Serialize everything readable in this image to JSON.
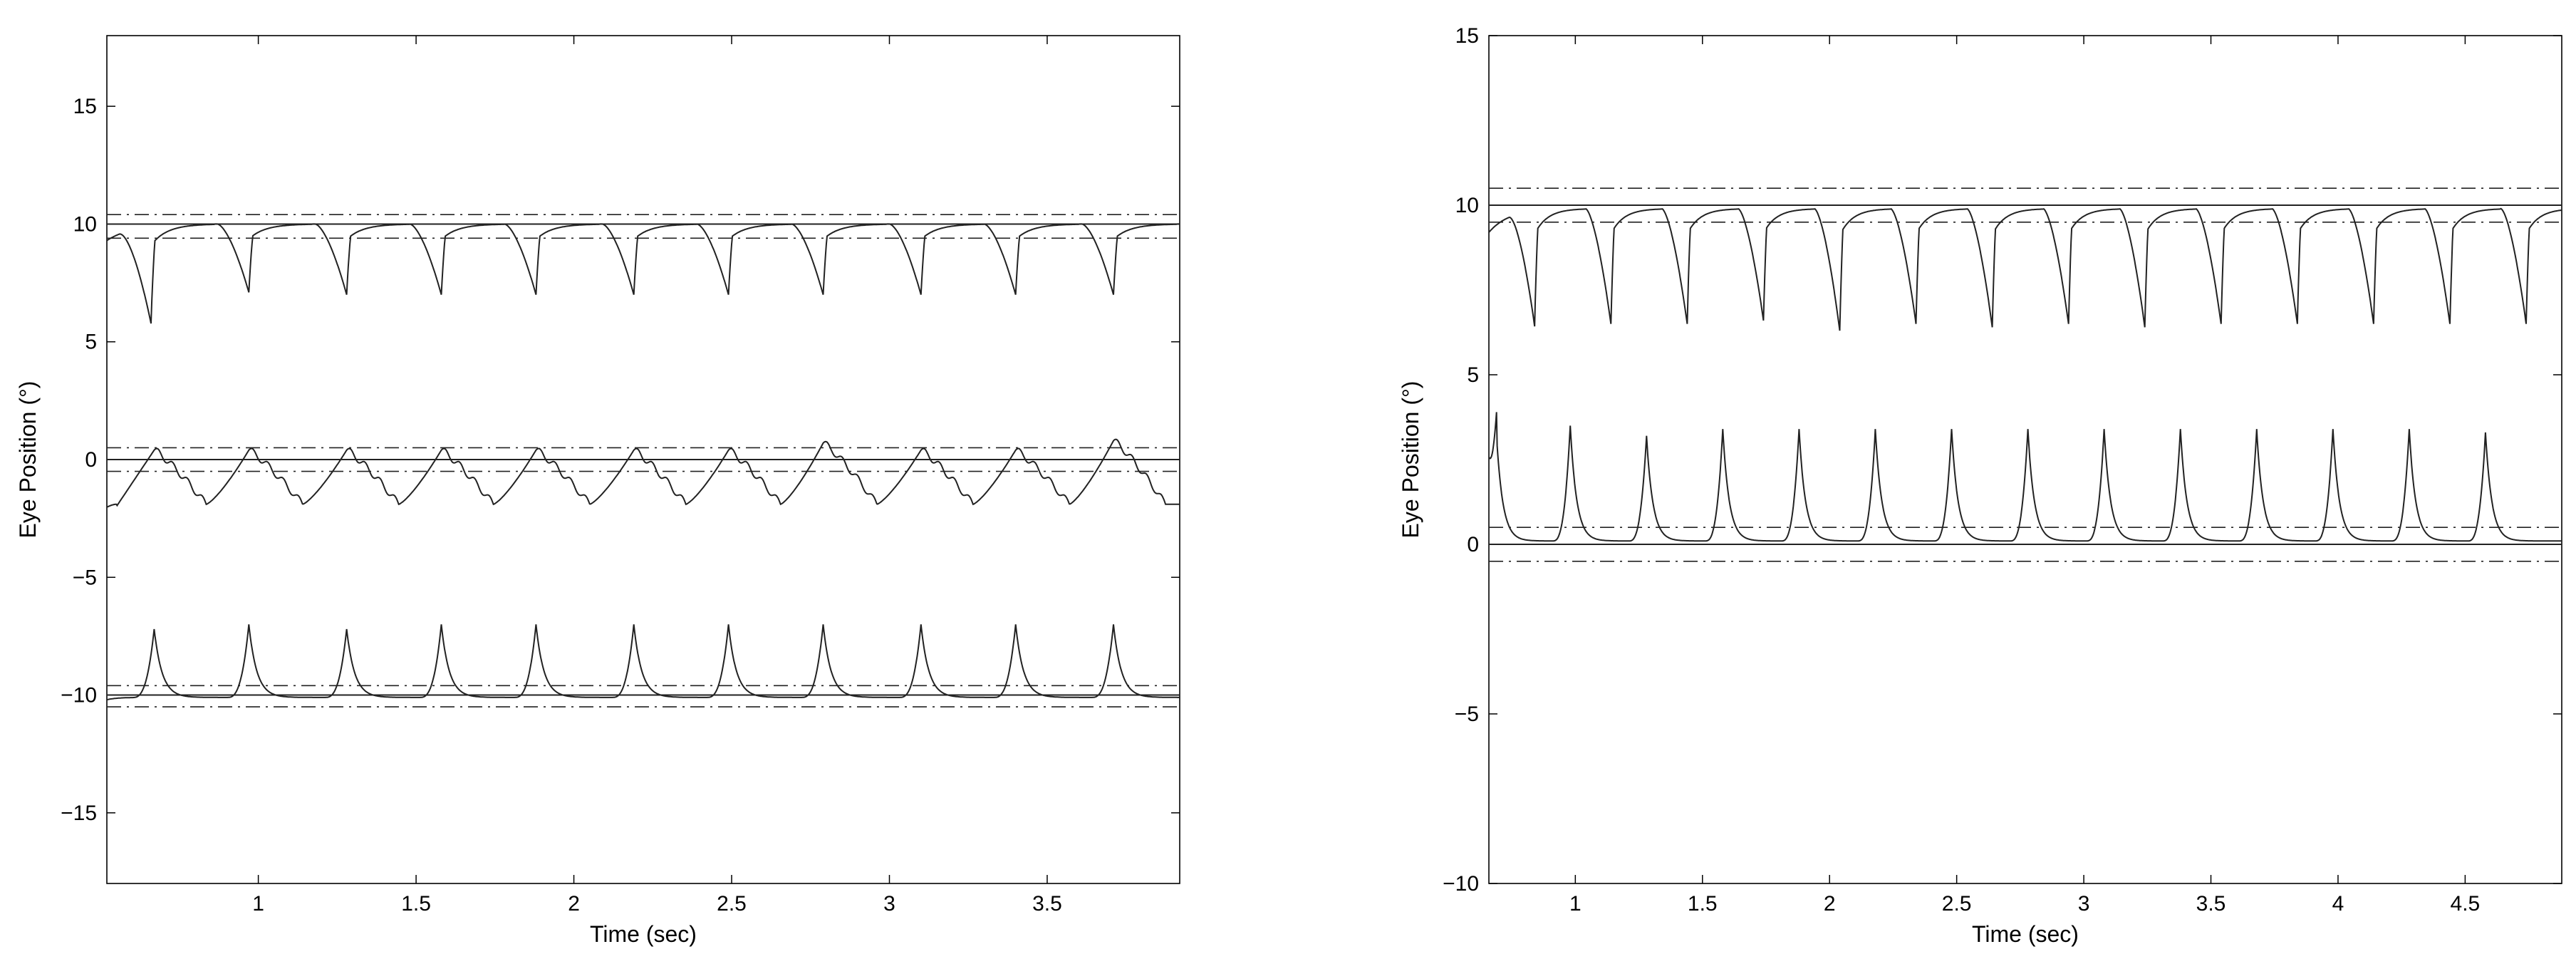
{
  "chart_data": [
    {
      "type": "line",
      "xlabel": "Time (sec)",
      "ylabel": "Eye Position (°)",
      "xlim": [
        0.52,
        3.92
      ],
      "ylim": [
        -18,
        18
      ],
      "xticks": [
        1,
        1.5,
        2,
        2.5,
        3,
        3.5
      ],
      "xtick_labels": [
        "1",
        "1.5",
        "2",
        "2.5",
        "3",
        "3.5"
      ],
      "yticks": [
        -15,
        -10,
        -5,
        0,
        5,
        10,
        15
      ],
      "ytick_labels": [
        "−15",
        "−10",
        "−5",
        "0",
        "5",
        "10",
        "15"
      ],
      "grid": false,
      "reference_lines": [
        {
          "style": "solid",
          "y": 10
        },
        {
          "style": "dashdot",
          "y": 10.4
        },
        {
          "style": "dashdot",
          "y": 9.4
        },
        {
          "style": "solid",
          "y": 0
        },
        {
          "style": "dashdot",
          "y": 0.5
        },
        {
          "style": "dashdot",
          "y": -0.5
        },
        {
          "style": "solid",
          "y": -10
        },
        {
          "style": "dashdot",
          "y": -9.6
        },
        {
          "style": "dashdot",
          "y": -10.5
        }
      ],
      "series": [
        {
          "pattern": "dip",
          "base": 10,
          "start_value": 9.3,
          "event_times": [
            0.66,
            0.97,
            1.28,
            1.58,
            1.88,
            2.19,
            2.49,
            2.79,
            3.1,
            3.4,
            3.71
          ],
          "event_values": [
            5.9,
            7.1,
            7.0,
            7.0,
            7.0,
            7.0,
            7.0,
            7.0,
            7.0,
            7.0,
            7.0
          ]
        },
        {
          "pattern": "ramp",
          "base": -1.9,
          "start_value": -2.0,
          "event_times": [
            0.67,
            0.97,
            1.28,
            1.58,
            1.88,
            2.19,
            2.49,
            2.79,
            3.1,
            3.4,
            3.71
          ],
          "event_values": [
            0.4,
            0.4,
            0.4,
            0.4,
            0.4,
            0.4,
            0.4,
            0.7,
            0.4,
            0.4,
            0.8
          ]
        },
        {
          "pattern": "spike",
          "base": -10.1,
          "start_value": -10.2,
          "event_times": [
            0.67,
            0.97,
            1.28,
            1.58,
            1.88,
            2.19,
            2.49,
            2.79,
            3.1,
            3.4,
            3.71
          ],
          "event_values": [
            -7.2,
            -7.0,
            -7.2,
            -7.0,
            -7.0,
            -7.0,
            -7.0,
            -7.0,
            -7.0,
            -7.0,
            -7.0
          ]
        }
      ]
    },
    {
      "type": "line",
      "xlabel": "Time (sec)",
      "ylabel": "Eye Position (°)",
      "xlim": [
        0.66,
        4.88
      ],
      "ylim": [
        -10,
        15
      ],
      "xticks": [
        1,
        1.5,
        2,
        2.5,
        3,
        3.5,
        4,
        4.5
      ],
      "xtick_labels": [
        "1",
        "1.5",
        "2",
        "2.5",
        "3",
        "3.5",
        "4",
        "4.5"
      ],
      "yticks": [
        -10,
        -5,
        0,
        5,
        10,
        15
      ],
      "ytick_labels": [
        "−10",
        "−5",
        "0",
        "5",
        "10",
        "15"
      ],
      "grid": false,
      "reference_lines": [
        {
          "style": "solid",
          "y": 10
        },
        {
          "style": "dashdot",
          "y": 10.5
        },
        {
          "style": "dashdot",
          "y": 9.5
        },
        {
          "style": "solid",
          "y": 0
        },
        {
          "style": "dashdot",
          "y": 0.5
        },
        {
          "style": "dashdot",
          "y": -0.5
        }
      ],
      "series": [
        {
          "pattern": "dip",
          "base": 9.9,
          "start_value": 9.2,
          "event_times": [
            0.84,
            1.14,
            1.44,
            1.74,
            2.04,
            2.34,
            2.64,
            2.94,
            3.24,
            3.54,
            3.84,
            4.14,
            4.44,
            4.74
          ],
          "event_values": [
            6.5,
            6.5,
            6.5,
            6.6,
            6.3,
            6.5,
            6.4,
            6.5,
            6.4,
            6.5,
            6.5,
            6.5,
            6.5,
            6.5
          ]
        },
        {
          "pattern": "spike",
          "base": 0.1,
          "start_value": 2.0,
          "event_times": [
            0.69,
            0.98,
            1.28,
            1.58,
            1.88,
            2.18,
            2.48,
            2.78,
            3.08,
            3.38,
            3.68,
            3.98,
            4.28,
            4.58
          ],
          "event_values": [
            3.2,
            3.5,
            3.2,
            3.4,
            3.4,
            3.4,
            3.4,
            3.4,
            3.4,
            3.4,
            3.4,
            3.4,
            3.4,
            3.3
          ]
        }
      ]
    }
  ]
}
